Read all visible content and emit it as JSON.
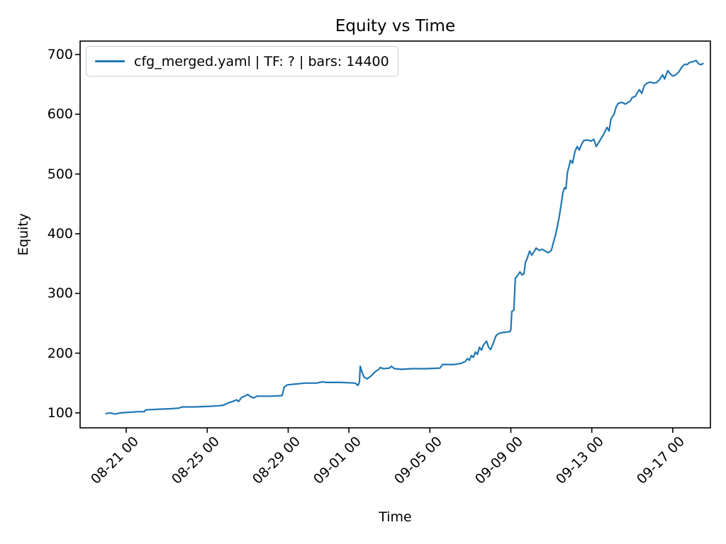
{
  "title": "Equity vs Time",
  "xlabel": "Time",
  "ylabel": "Equity",
  "legend": {
    "label": "cfg_merged.yaml | TF: ? | bars: 14400"
  },
  "colors": {
    "line": "#1f77b4",
    "spine": "#000000",
    "text": "#000000",
    "legend_border": "#cccccc",
    "background": "#ffffff"
  },
  "chart_data": {
    "type": "line",
    "title": "Equity vs Time",
    "xlabel": "Time",
    "ylabel": "Equity",
    "grid": false,
    "legend_position": "upper left",
    "x_unit": "days since 08-20 00:00",
    "xlim": [
      -1.28,
      29.86
    ],
    "ylim": [
      75,
      722.5
    ],
    "yticks": [
      100,
      200,
      300,
      400,
      500,
      600,
      700
    ],
    "xticks": [
      {
        "day": 1,
        "label": "08-21 00"
      },
      {
        "day": 5,
        "label": "08-25 00"
      },
      {
        "day": 9,
        "label": "08-29 00"
      },
      {
        "day": 12,
        "label": "09-01 00"
      },
      {
        "day": 16,
        "label": "09-05 00"
      },
      {
        "day": 20,
        "label": "09-09 00"
      },
      {
        "day": 24,
        "label": "09-13 00"
      },
      {
        "day": 28,
        "label": "09-17 00"
      }
    ],
    "series": [
      {
        "name": "cfg_merged.yaml | TF: ? | bars: 14400",
        "color": "#1f77b4",
        "points": [
          [
            0,
            99
          ],
          [
            0.2,
            100
          ],
          [
            0.45,
            98
          ],
          [
            0.7,
            100
          ],
          [
            1.1,
            101
          ],
          [
            1.6,
            102
          ],
          [
            1.9,
            102
          ],
          [
            1.95,
            105
          ],
          [
            2.5,
            106
          ],
          [
            3.2,
            107
          ],
          [
            3.6,
            108
          ],
          [
            3.75,
            110
          ],
          [
            4.4,
            110
          ],
          [
            5.1,
            111
          ],
          [
            5.6,
            112
          ],
          [
            5.8,
            113
          ],
          [
            6.05,
            117
          ],
          [
            6.25,
            119
          ],
          [
            6.45,
            122
          ],
          [
            6.55,
            119
          ],
          [
            6.7,
            126
          ],
          [
            6.85,
            128
          ],
          [
            7.0,
            131
          ],
          [
            7.15,
            127
          ],
          [
            7.3,
            125
          ],
          [
            7.45,
            128
          ],
          [
            8.1,
            128
          ],
          [
            8.7,
            129
          ],
          [
            8.8,
            143
          ],
          [
            8.95,
            147
          ],
          [
            9.3,
            148
          ],
          [
            9.85,
            150
          ],
          [
            10.4,
            150
          ],
          [
            10.7,
            152
          ],
          [
            10.9,
            151
          ],
          [
            11.6,
            151
          ],
          [
            12.3,
            150
          ],
          [
            12.45,
            146
          ],
          [
            12.52,
            152
          ],
          [
            12.56,
            178
          ],
          [
            12.65,
            168
          ],
          [
            12.75,
            160
          ],
          [
            12.9,
            157
          ],
          [
            13.1,
            162
          ],
          [
            13.3,
            169
          ],
          [
            13.45,
            172
          ],
          [
            13.55,
            176
          ],
          [
            13.7,
            174
          ],
          [
            14.0,
            175
          ],
          [
            14.1,
            178
          ],
          [
            14.25,
            174
          ],
          [
            14.6,
            173
          ],
          [
            15.1,
            174
          ],
          [
            15.8,
            174
          ],
          [
            16.5,
            175
          ],
          [
            16.62,
            181
          ],
          [
            17.2,
            181
          ],
          [
            17.55,
            183
          ],
          [
            17.75,
            186
          ],
          [
            17.85,
            191
          ],
          [
            17.95,
            188
          ],
          [
            18.05,
            196
          ],
          [
            18.15,
            193
          ],
          [
            18.25,
            202
          ],
          [
            18.35,
            198
          ],
          [
            18.45,
            210
          ],
          [
            18.55,
            205
          ],
          [
            18.65,
            214
          ],
          [
            18.8,
            220
          ],
          [
            18.9,
            210
          ],
          [
            19.0,
            206
          ],
          [
            19.15,
            218
          ],
          [
            19.25,
            228
          ],
          [
            19.35,
            232
          ],
          [
            19.5,
            234
          ],
          [
            19.95,
            236
          ],
          [
            20.0,
            239
          ],
          [
            20.05,
            270
          ],
          [
            20.15,
            272
          ],
          [
            20.22,
            325
          ],
          [
            20.33,
            330
          ],
          [
            20.45,
            336
          ],
          [
            20.55,
            331
          ],
          [
            20.65,
            333
          ],
          [
            20.72,
            352
          ],
          [
            20.8,
            358
          ],
          [
            20.87,
            365
          ],
          [
            20.93,
            371
          ],
          [
            21.03,
            364
          ],
          [
            21.15,
            370
          ],
          [
            21.25,
            376
          ],
          [
            21.4,
            372
          ],
          [
            21.55,
            374
          ],
          [
            21.7,
            371
          ],
          [
            21.85,
            368
          ],
          [
            22.0,
            372
          ],
          [
            22.1,
            385
          ],
          [
            22.2,
            397
          ],
          [
            22.3,
            412
          ],
          [
            22.4,
            430
          ],
          [
            22.5,
            452
          ],
          [
            22.58,
            470
          ],
          [
            22.65,
            477
          ],
          [
            22.72,
            475
          ],
          [
            22.8,
            503
          ],
          [
            22.87,
            512
          ],
          [
            22.95,
            523
          ],
          [
            23.05,
            518
          ],
          [
            23.17,
            538
          ],
          [
            23.28,
            546
          ],
          [
            23.38,
            540
          ],
          [
            23.5,
            550
          ],
          [
            23.6,
            556
          ],
          [
            23.8,
            557
          ],
          [
            23.95,
            555
          ],
          [
            24.1,
            558
          ],
          [
            24.22,
            546
          ],
          [
            24.33,
            552
          ],
          [
            24.45,
            559
          ],
          [
            24.6,
            567
          ],
          [
            24.75,
            578
          ],
          [
            24.85,
            572
          ],
          [
            24.95,
            592
          ],
          [
            25.1,
            600
          ],
          [
            25.2,
            612
          ],
          [
            25.3,
            618
          ],
          [
            25.5,
            620
          ],
          [
            25.65,
            617
          ],
          [
            25.8,
            620
          ],
          [
            25.9,
            622
          ],
          [
            26.0,
            628
          ],
          [
            26.15,
            630
          ],
          [
            26.25,
            636
          ],
          [
            26.35,
            641
          ],
          [
            26.47,
            635
          ],
          [
            26.6,
            648
          ],
          [
            26.72,
            652
          ],
          [
            26.9,
            654
          ],
          [
            27.05,
            652
          ],
          [
            27.2,
            653
          ],
          [
            27.35,
            658
          ],
          [
            27.5,
            666
          ],
          [
            27.6,
            659
          ],
          [
            27.75,
            673
          ],
          [
            27.9,
            667
          ],
          [
            28.0,
            664
          ],
          [
            28.15,
            666
          ],
          [
            28.3,
            671
          ],
          [
            28.45,
            679
          ],
          [
            28.6,
            684
          ],
          [
            28.7,
            683
          ],
          [
            28.85,
            687
          ],
          [
            29.0,
            688
          ],
          [
            29.15,
            690
          ],
          [
            29.3,
            684
          ],
          [
            29.4,
            683
          ],
          [
            29.5,
            685
          ]
        ]
      }
    ]
  }
}
